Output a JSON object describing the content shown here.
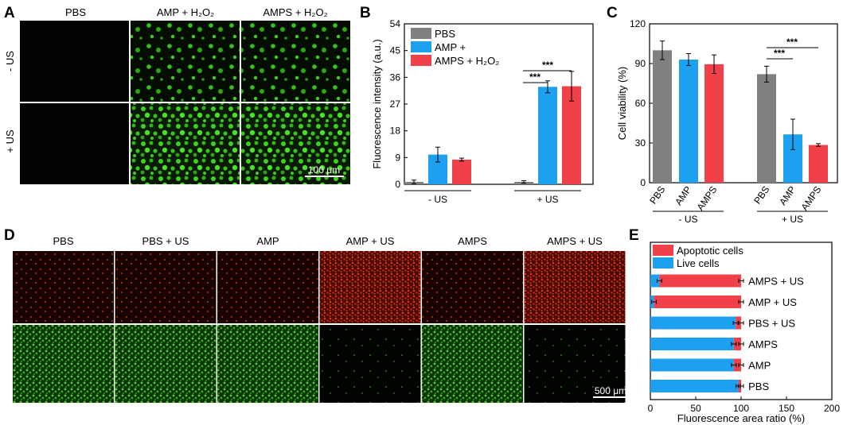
{
  "panels": {
    "a": {
      "label": "A",
      "columns": [
        "PBS",
        "AMP + H₂O₂",
        "AMPS + H₂O₂"
      ],
      "rows": [
        "- US",
        "+ US"
      ],
      "scale_bar": "100 μm"
    },
    "d": {
      "label": "D",
      "columns": [
        "PBS",
        "PBS + US",
        "AMP",
        "AMP + US",
        "AMPS",
        "AMPS + US"
      ],
      "scale_bar": "500 μm"
    }
  },
  "chart_data": [
    {
      "panel": "B",
      "type": "bar",
      "ylabel": "Fluorescence intensity (a.u.)",
      "ylim": [
        0,
        54
      ],
      "yticks": [
        0,
        9,
        18,
        27,
        36,
        45,
        54
      ],
      "groups": [
        "- US",
        "+ US"
      ],
      "legend_position": "top-left",
      "series": [
        {
          "name": "PBS",
          "color": "#808080",
          "values": [
            0.8,
            0.8
          ],
          "errors": [
            0.6,
            0.4
          ]
        },
        {
          "name": "AMP +",
          "color": "#1ea0f0",
          "values": [
            10.0,
            32.8
          ],
          "errors": [
            2.5,
            2.0
          ]
        },
        {
          "name": "AMPS + H₂O₂",
          "color": "#f0414b",
          "values": [
            8.3,
            33.0
          ],
          "errors": [
            0.5,
            5.0
          ]
        }
      ],
      "significance": [
        "***",
        "***"
      ]
    },
    {
      "panel": "C",
      "type": "bar",
      "ylabel": "Cell viability (%)",
      "ylim": [
        0,
        120
      ],
      "yticks": [
        0,
        30,
        60,
        90,
        120
      ],
      "categories": [
        "PBS",
        "AMP",
        "AMPS",
        "PBS",
        "AMP",
        "AMPS"
      ],
      "groups": [
        "- US",
        "+ US"
      ],
      "colors": [
        "#808080",
        "#1ea0f0",
        "#f0414b",
        "#808080",
        "#1ea0f0",
        "#f0414b"
      ],
      "values": [
        100,
        93,
        89.5,
        82,
        36.5,
        28.5
      ],
      "errors": [
        7,
        4.5,
        7,
        6,
        11.5,
        1
      ],
      "significance": [
        "***",
        "***"
      ]
    },
    {
      "panel": "E",
      "type": "bar",
      "orientation": "horizontal-stacked",
      "xlabel": "Fluorescence area ratio (%)",
      "xlim": [
        0,
        200
      ],
      "xticks": [
        0,
        50,
        100,
        150,
        200
      ],
      "categories": [
        "PBS",
        "AMP",
        "AMPS",
        "PBS + US",
        "AMP + US",
        "AMPS + US"
      ],
      "legend_position": "top",
      "series": [
        {
          "name": "Live cells",
          "color": "#1ea0f0",
          "values": [
            97,
            92,
            92,
            94,
            4,
            10
          ]
        },
        {
          "name": "Apoptotic cells",
          "color": "#f0414b",
          "values": [
            3,
            8,
            8,
            6,
            96,
            90
          ]
        }
      ]
    }
  ],
  "colors": {
    "gray": "#808080",
    "blue": "#1ea0f0",
    "red": "#f0414b",
    "green": "#22cc22"
  }
}
